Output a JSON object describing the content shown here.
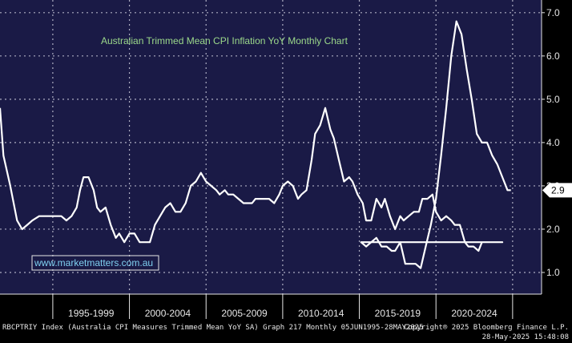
{
  "chart_data": {
    "type": "line",
    "title": "Australian Trimmed Mean CPI Inflation YoY Monthly Chart",
    "xlabel": "",
    "ylabel": "",
    "ylim": [
      0.5,
      7.2
    ],
    "xlim": [
      1995.4,
      2027.2
    ],
    "yticks": [
      1.0,
      2.0,
      3.0,
      4.0,
      5.0,
      6.0,
      7.0
    ],
    "ytick_labels": [
      "1.0",
      "2.0",
      "3.0",
      "4.0",
      "5.0",
      "6.0",
      "7.0"
    ],
    "x_period_labels": [
      "1995-1999",
      "2000-2004",
      "2005-2009",
      "2010-2014",
      "2015-2019",
      "2020-2024"
    ],
    "x_period_boundaries": [
      1998.5,
      2003.0,
      2007.5,
      2012.0,
      2016.5,
      2021.0,
      2025.5
    ],
    "last_value_label": "2.9",
    "grid": true,
    "series": [
      {
        "x": [
          1995.4,
          1995.6,
          1996.0,
          1996.4,
          1996.7,
          1997.0,
          1997.3,
          1997.7,
          1998.0,
          1998.3,
          1998.7,
          1999.0,
          1999.3,
          1999.6,
          1999.9,
          2000.1,
          2000.3,
          2000.6,
          2000.9,
          2001.1,
          2001.3,
          2001.6,
          2001.9,
          2002.2,
          2002.4,
          2002.7,
          2003.0,
          2003.3,
          2003.6,
          2003.9,
          2004.2,
          2004.5,
          2004.8,
          2005.1,
          2005.4,
          2005.7,
          2006.0,
          2006.3,
          2006.6,
          2006.9,
          2007.2,
          2007.5,
          2007.8,
          2008.1,
          2008.3,
          2008.6,
          2008.8,
          2009.1,
          2009.4,
          2009.7,
          2009.9,
          2010.2,
          2010.4,
          2010.7,
          2011.0,
          2011.2,
          2011.5,
          2011.8,
          2012.0,
          2012.3,
          2012.6,
          2012.9,
          2013.1,
          2013.4,
          2013.7,
          2013.9,
          2014.2,
          2014.5,
          2014.8,
          2015.0,
          2015.3,
          2015.6,
          2015.9,
          2016.1,
          2016.4,
          2016.7,
          2016.9,
          2017.2,
          2017.5,
          2017.8,
          2018.0,
          2018.3,
          2018.6,
          2018.9,
          2019.1,
          2019.4,
          2019.7,
          2020.0,
          2020.2,
          2020.5,
          2020.8,
          2021.0,
          2021.3,
          2021.6,
          2021.9,
          2022.1,
          2022.4,
          2022.7,
          2022.9,
          2023.2,
          2023.5,
          2023.7,
          2024.0,
          2024.3,
          2024.6,
          2024.9
        ],
        "y": [
          4.8,
          3.7,
          3.0,
          2.2,
          2.0,
          2.1,
          2.2,
          2.3,
          2.3,
          2.3,
          2.3,
          2.3,
          2.2,
          2.3,
          2.5,
          2.9,
          3.2,
          3.2,
          2.9,
          2.5,
          2.4,
          2.5,
          2.1,
          1.8,
          1.9,
          1.7,
          1.9,
          1.9,
          1.7,
          1.7,
          1.7,
          2.1,
          2.3,
          2.5,
          2.6,
          2.4,
          2.4,
          2.6,
          3.0,
          3.1,
          3.3,
          3.1,
          3.0,
          2.9,
          2.8,
          2.9,
          2.8,
          2.8,
          2.7,
          2.6,
          2.6,
          2.6,
          2.7,
          2.7,
          2.7,
          2.7,
          2.6,
          2.8,
          3.0,
          3.1,
          3.0,
          2.7,
          2.8,
          2.9,
          3.6,
          4.2,
          4.4,
          4.8,
          4.3,
          4.1,
          3.6,
          3.1,
          3.2,
          3.1,
          2.8,
          2.6,
          2.2,
          2.2,
          2.7,
          2.5,
          2.7,
          2.3,
          2.0,
          2.3,
          2.2,
          2.3,
          2.4,
          2.4,
          2.7,
          2.7,
          2.8,
          2.4,
          2.2,
          2.3,
          2.2,
          2.1,
          2.1,
          1.7,
          1.6,
          1.6,
          1.5,
          1.7,
          1.7,
          1.7,
          1.7,
          1.7
        ]
      }
    ]
  },
  "series_tail": {
    "x": [
      2016.6,
      2016.9,
      2017.2,
      2017.5,
      2017.8,
      2018.1,
      2018.4,
      2018.6,
      2018.9,
      2019.2,
      2019.5,
      2019.8,
      2020.1,
      2020.4,
      2020.7,
      2021.0,
      2021.3,
      2021.6,
      2021.9,
      2022.2,
      2022.5,
      2022.8,
      2023.1,
      2023.4,
      2023.7,
      2024.0,
      2024.3,
      2024.6,
      2024.9,
      2025.2,
      2025.4
    ],
    "y": [
      1.7,
      1.6,
      1.7,
      1.8,
      1.6,
      1.6,
      1.5,
      1.5,
      1.7,
      1.2,
      1.2,
      1.2,
      1.1,
      1.6,
      2.1,
      2.7,
      3.7,
      4.8,
      6.0,
      6.8,
      6.5,
      5.7,
      5.0,
      4.2,
      4.0,
      4.0,
      3.7,
      3.5,
      3.2,
      2.9,
      2.9
    ]
  },
  "watermark": "www.marketmatters.com.au",
  "footer": {
    "left": "RBCPTRIY Index (Australia CPI Measures Trimmed Mean YoY SA) Graph 217  Monthly 05JUN1995-28MAY2025",
    "right_line1": "Copyright® 2025 Bloomberg Finance L.P.",
    "right_line2": "28-May-2025 15:48:08"
  },
  "colors": {
    "background": "#000000",
    "plot_background": "#1a1a46",
    "line": "#ffffff",
    "grid": "#c8c8d8",
    "title": "#9bd88a",
    "watermark": "#7fd0f0",
    "axis_text": "#e6e6e6"
  }
}
